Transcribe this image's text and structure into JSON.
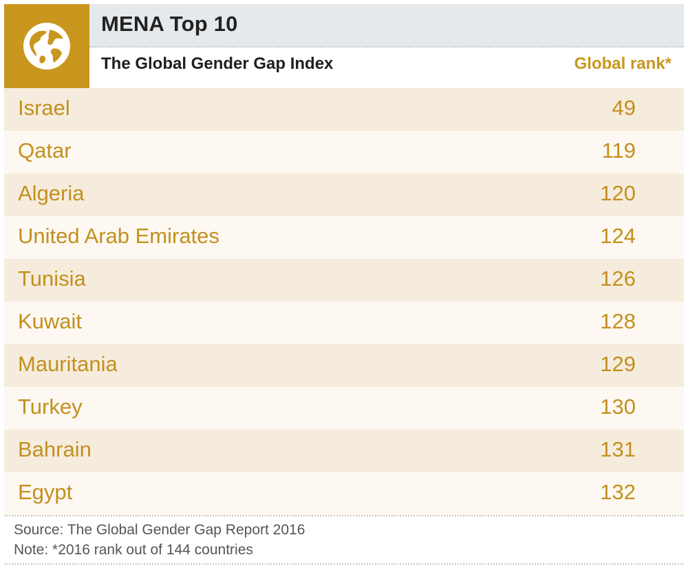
{
  "header": {
    "title": "MENA Top 10",
    "subtitle": "The Global Gender Gap Index",
    "rank_column_label": "Global rank*",
    "logo_icon": "globe-icon"
  },
  "colors": {
    "accent": "#c9961e",
    "row_dark": "#f6ecdd",
    "row_light": "#fdf8f1",
    "title_strip": "#e6e9ec"
  },
  "chart_data": {
    "type": "table",
    "title": "MENA Top 10",
    "subtitle": "The Global Gender Gap Index",
    "columns": [
      "",
      "Global rank*"
    ],
    "rows": [
      {
        "country": "Israel",
        "rank": "49"
      },
      {
        "country": "Qatar",
        "rank": "119"
      },
      {
        "country": "Algeria",
        "rank": "120"
      },
      {
        "country": "United Arab Emirates",
        "rank": "124"
      },
      {
        "country": "Tunisia",
        "rank": "126"
      },
      {
        "country": "Kuwait",
        "rank": "128"
      },
      {
        "country": "Mauritania",
        "rank": "129"
      },
      {
        "country": "Turkey",
        "rank": "130"
      },
      {
        "country": "Bahrain",
        "rank": "131"
      },
      {
        "country": "Egypt",
        "rank": "132"
      }
    ]
  },
  "footer": {
    "source": "Source: The Global Gender Gap Report 2016",
    "note": "Note: *2016 rank out of 144 countries"
  }
}
